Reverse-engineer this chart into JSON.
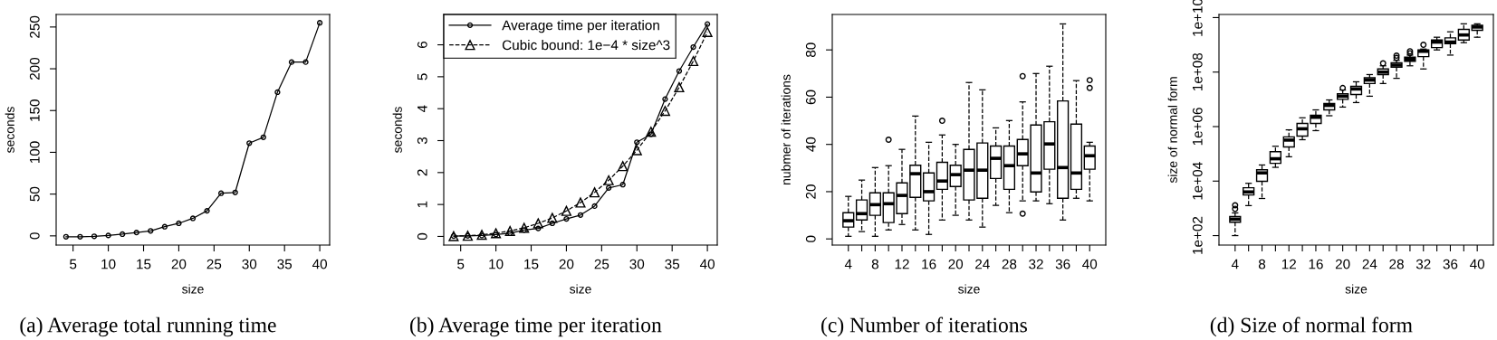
{
  "chart_data": [
    {
      "type": "line",
      "title": "(a) Average total running time",
      "xlabel": "size",
      "ylabel": "seconds",
      "marker": "circle",
      "line_style": "solid",
      "x": [
        4,
        6,
        8,
        10,
        12,
        14,
        16,
        18,
        20,
        22,
        24,
        26,
        28,
        30,
        32,
        34,
        36,
        38,
        40
      ],
      "series": [
        {
          "color": "#000000",
          "values": [
            -1,
            -1,
            -0.5,
            0.5,
            2,
            4,
            6,
            11,
            15,
            21,
            30,
            51,
            52,
            111,
            118,
            172,
            208,
            208,
            255
          ]
        }
      ],
      "xlim": [
        2.6,
        41.4
      ],
      "ylim": [
        -11,
        265
      ],
      "xticks": [
        5,
        10,
        15,
        20,
        25,
        30,
        35,
        40
      ],
      "yticks": [
        0,
        50,
        100,
        150,
        200,
        250
      ]
    },
    {
      "type": "line",
      "title": "(b) Average time per iteration",
      "xlabel": "size",
      "ylabel": "seconds",
      "legend": "top left",
      "x": [
        4,
        6,
        8,
        10,
        12,
        14,
        16,
        18,
        20,
        22,
        24,
        26,
        28,
        30,
        32,
        34,
        36,
        38,
        40
      ],
      "series": [
        {
          "name": "Average time per iteration",
          "color": "#000000",
          "marker": "circle",
          "line_style": "solid",
          "values": [
            0.01,
            0.02,
            0.03,
            0.06,
            0.1,
            0.2,
            0.25,
            0.41,
            0.55,
            0.67,
            0.95,
            1.52,
            1.62,
            2.95,
            3.2,
            4.3,
            5.18,
            5.93,
            6.65
          ]
        },
        {
          "name": "Cubic bound: 1e−4 * size^3",
          "color": "#000000",
          "marker": "triangle",
          "line_style": "dashed",
          "values": [
            0.01,
            0.02,
            0.05,
            0.1,
            0.17,
            0.27,
            0.41,
            0.58,
            0.8,
            1.06,
            1.38,
            1.76,
            2.2,
            2.7,
            3.28,
            3.93,
            4.67,
            5.49,
            6.4
          ]
        }
      ],
      "xlim": [
        2.6,
        41.4
      ],
      "ylim": [
        -0.27,
        6.95
      ],
      "xticks": [
        5,
        10,
        15,
        20,
        25,
        30,
        35,
        40
      ],
      "yticks": [
        0,
        1,
        2,
        3,
        4,
        5,
        6
      ]
    },
    {
      "type": "box",
      "title": "(c) Number of iterations",
      "xlabel": "size",
      "ylabel": "nubmer of iterations",
      "categories": [
        "4",
        null,
        "8",
        null,
        "12",
        null,
        "16",
        null,
        "20",
        null,
        "24",
        null,
        "28",
        null,
        "32",
        null,
        "36",
        null,
        "40"
      ],
      "boxes": [
        {
          "low": 1.1,
          "q1": 5,
          "median": 7.7,
          "q3": 11.1,
          "high": 18
        },
        {
          "low": 3.1,
          "q1": 8,
          "median": 10.7,
          "q3": 16.5,
          "high": 24.9
        },
        {
          "low": 1.1,
          "q1": 10,
          "median": 14.5,
          "q3": 19.5,
          "high": 30.2
        },
        {
          "low": 3.8,
          "q1": 6.9,
          "median": 14.9,
          "q3": 19.5,
          "high": 31,
          "outliers": [
            42
          ]
        },
        {
          "low": 6.1,
          "q1": 10.7,
          "median": 18.4,
          "q3": 23.7,
          "high": 37.9
        },
        {
          "low": 3.8,
          "q1": 17.6,
          "median": 27.6,
          "q3": 31.2,
          "high": 52
        },
        {
          "low": 1.9,
          "q1": 16.1,
          "median": 20,
          "q3": 27.9,
          "high": 40.9
        },
        {
          "low": 8,
          "q1": 21,
          "median": 24.5,
          "q3": 32.4,
          "high": 44,
          "outliers": [
            50
          ]
        },
        {
          "low": 10,
          "q1": 22.2,
          "median": 27.2,
          "q3": 31.2,
          "high": 40
        },
        {
          "low": 8,
          "q1": 16.5,
          "median": 29.1,
          "q3": 37.9,
          "high": 66.2
        },
        {
          "low": 5,
          "q1": 17.2,
          "median": 29.1,
          "q3": 40.6,
          "high": 63.1
        },
        {
          "low": 14.2,
          "q1": 25.6,
          "median": 34.1,
          "q3": 39.3,
          "high": 47
        },
        {
          "low": 11.1,
          "q1": 21,
          "median": 31,
          "q3": 39.3,
          "high": 50.1
        },
        {
          "low": 16.1,
          "q1": 31,
          "median": 36,
          "q3": 42.1,
          "high": 58,
          "outliers": [
            68.9,
            10.7
          ]
        },
        {
          "low": 16.1,
          "q1": 19.9,
          "median": 27.9,
          "q3": 48.2,
          "high": 70
        },
        {
          "low": 14.9,
          "q1": 29.5,
          "median": 40.2,
          "q3": 49.6,
          "high": 73.1
        },
        {
          "low": 8,
          "q1": 17.2,
          "median": 30.2,
          "q3": 58.4,
          "high": 91
        },
        {
          "low": 17.2,
          "q1": 21,
          "median": 27.9,
          "q3": 48.6,
          "high": 67
        },
        {
          "low": 16.1,
          "q1": 29.5,
          "median": 35.2,
          "q3": 39.3,
          "high": 40.9,
          "outliers": [
            67.2,
            63.9
          ]
        }
      ],
      "ylim": [
        -2.6,
        95
      ],
      "yticks": [
        0,
        20,
        40,
        60,
        80
      ]
    },
    {
      "type": "box",
      "title": "(d) Size of normal form",
      "xlabel": "size",
      "ylabel": "size of normal form",
      "log": "y",
      "categories": [
        "4",
        null,
        "8",
        null,
        "12",
        null,
        "16",
        null,
        "20",
        null,
        "24",
        null,
        "28",
        null,
        "32",
        null,
        "36",
        null,
        "40"
      ],
      "boxes": [
        {
          "low": 100,
          "q1": 310,
          "median": 400,
          "q3": 500,
          "high": 680,
          "outliers": [
            960,
            1300
          ]
        },
        {
          "low": 1260,
          "q1": 3100,
          "median": 4000,
          "q3": 5700,
          "high": 8300
        },
        {
          "low": 2300,
          "q1": 9800,
          "median": 20000,
          "q3": 26000,
          "high": 39000
        },
        {
          "low": 32000,
          "q1": 45000,
          "median": 66000,
          "q3": 120000,
          "high": 190000
        },
        {
          "low": 78000,
          "q1": 180000,
          "median": 320000,
          "q3": 420000,
          "high": 760000
        },
        {
          "low": 330000,
          "q1": 450000,
          "median": 830000,
          "q3": 1300000,
          "high": 2100000
        },
        {
          "low": 710000,
          "q1": 1300000,
          "median": 2200000,
          "q3": 2600000,
          "high": 4100000
        },
        {
          "low": 2500000,
          "q1": 4100000,
          "median": 6000000,
          "q3": 7000000,
          "high": 9500000
        },
        {
          "low": 5200000,
          "q1": 10000000,
          "median": 13000000,
          "q3": 16000000,
          "high": 22000000,
          "outliers": [
            26000000
          ]
        },
        {
          "low": 7600000,
          "q1": 15000000,
          "median": 24000000,
          "q3": 30000000,
          "high": 44000000
        },
        {
          "low": 13000000,
          "q1": 38000000,
          "median": 51000000,
          "q3": 62000000,
          "high": 81000000
        },
        {
          "low": 38000000,
          "q1": 81000000,
          "median": 100000000,
          "q3": 130000000,
          "high": 170000000,
          "outliers": [
            210000000
          ]
        },
        {
          "low": 59000000,
          "q1": 150000000,
          "median": 180000000,
          "q3": 220000000,
          "high": 270000000,
          "outliers": [
            330000000,
            400000000
          ]
        },
        {
          "low": 170000000,
          "q1": 250000000,
          "median": 290000000,
          "q3": 350000000,
          "high": 420000000,
          "outliers": [
            490000000,
            580000000
          ]
        },
        {
          "low": 130000000,
          "q1": 370000000,
          "median": 580000000,
          "q3": 650000000,
          "high": 700000000,
          "outliers": [
            1000000000
          ]
        },
        {
          "low": 650000000,
          "q1": 790000000,
          "median": 1260000000,
          "q3": 1500000000,
          "high": 1900000000
        },
        {
          "low": 420000000,
          "q1": 1100000000,
          "median": 1260000000,
          "q3": 1800000000,
          "high": 3000000000
        },
        {
          "low": 1200000000,
          "q1": 1500000000,
          "median": 2300000000,
          "q3": 3700000000,
          "high": 5900000000
        },
        {
          "low": 1900000000,
          "q1": 3400000000,
          "median": 4500000000,
          "q3": 5200000000,
          "high": 5900000000
        }
      ],
      "ylim": [
        45,
        13000000000
      ],
      "yticks": [
        {
          "value": 100,
          "label": "1e+02"
        },
        {
          "value": 10000,
          "label": "1e+04"
        },
        {
          "value": 1000000,
          "label": "1e+06"
        },
        {
          "value": 100000000,
          "label": "1e+08"
        },
        {
          "value": 10000000000,
          "label": "1e+10"
        }
      ]
    }
  ]
}
